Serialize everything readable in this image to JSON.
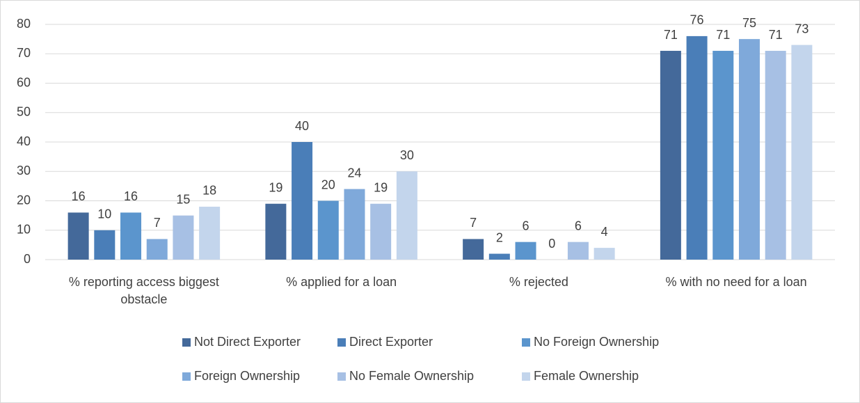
{
  "chart_data": {
    "type": "bar",
    "categories": [
      "% reporting access biggest obstacle",
      "% applied for a loan",
      "% rejected",
      "% with no need for a loan"
    ],
    "series": [
      {
        "name": "Not Direct Exporter",
        "color": "#44699a",
        "values": [
          16,
          19,
          7,
          71
        ]
      },
      {
        "name": "Direct Exporter",
        "color": "#4a7eb8",
        "values": [
          10,
          40,
          2,
          76
        ]
      },
      {
        "name": "No Foreign Ownership",
        "color": "#5b95cd",
        "values": [
          16,
          20,
          6,
          71
        ]
      },
      {
        "name": "Foreign Ownership",
        "color": "#7fa9da",
        "values": [
          7,
          24,
          0,
          75
        ]
      },
      {
        "name": "No Female Ownership",
        "color": "#a7c0e4",
        "values": [
          15,
          19,
          6,
          71
        ]
      },
      {
        "name": "Female Ownership",
        "color": "#c3d5ec",
        "values": [
          18,
          30,
          4,
          73
        ]
      }
    ],
    "ylim": [
      0,
      80
    ],
    "yticks": [
      0,
      10,
      20,
      30,
      40,
      50,
      60,
      70,
      80
    ],
    "grid": true,
    "legend": "bottom"
  }
}
